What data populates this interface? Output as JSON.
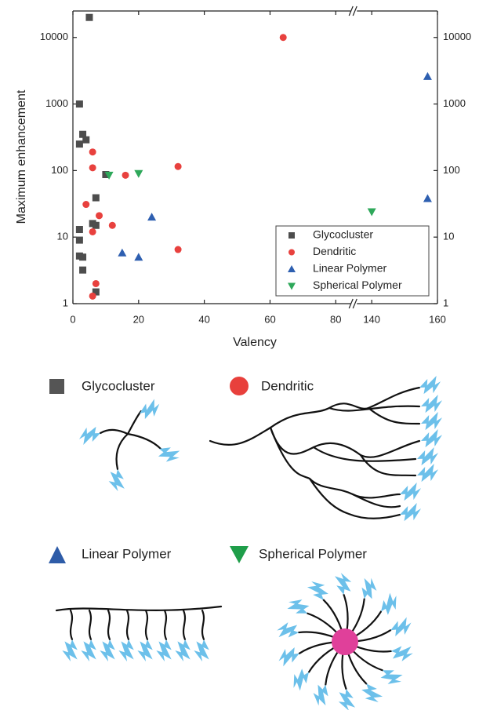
{
  "chart_data": {
    "type": "scatter",
    "xlabel": "Valency",
    "ylabel": "Maximum enhancement",
    "xlim": [
      0,
      160
    ],
    "xbreak": [
      85,
      135
    ],
    "xticks": [
      0,
      20,
      40,
      60,
      80,
      140,
      160
    ],
    "ylim": [
      1,
      25000
    ],
    "yticks": [
      1,
      10,
      100,
      1000,
      10000
    ],
    "log_y": true,
    "mirror_y_labels": true,
    "legend": "lower right",
    "series": [
      {
        "name": "Glycocluster",
        "marker": "square",
        "color": "#4d4d4d",
        "x": [
          5,
          2,
          3,
          4,
          2,
          7,
          10,
          6,
          7,
          2,
          2,
          2,
          3,
          3,
          7
        ],
        "values": [
          20000,
          1000,
          350,
          290,
          250,
          39,
          87,
          16,
          15,
          13,
          9,
          5.2,
          5,
          3.2,
          1.5
        ]
      },
      {
        "name": "Dendritic",
        "marker": "circle",
        "color": "#e8413e",
        "x": [
          64,
          6,
          6,
          32,
          16,
          4,
          6,
          8,
          12,
          32,
          7,
          6
        ],
        "values": [
          10000,
          190,
          110,
          115,
          85,
          31,
          12,
          21,
          15,
          6.5,
          2,
          1.3
        ]
      },
      {
        "name": "Linear Polymer",
        "marker": "triangle-up",
        "color": "#2e5fb0",
        "x": [
          157,
          157,
          15,
          20,
          24
        ],
        "values": [
          2600,
          38,
          5.8,
          5,
          20
        ]
      },
      {
        "name": "Spherical Polymer",
        "marker": "triangle-down",
        "color": "#2ea85a",
        "x": [
          11,
          20,
          140
        ],
        "values": [
          85,
          90,
          24
        ]
      }
    ]
  },
  "diagram": {
    "labels": [
      "Glycocluster",
      "Dendritic",
      "Linear Polymer",
      "Spherical Polymer"
    ]
  }
}
